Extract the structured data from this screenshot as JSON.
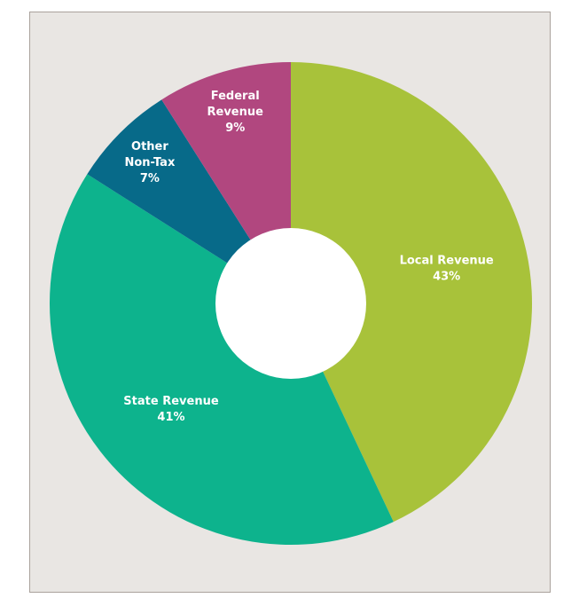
{
  "chart_data": {
    "type": "pie",
    "variant": "donut",
    "title": "",
    "unit": "%",
    "slices": [
      {
        "label_lines": [
          "Local Revenue"
        ],
        "value_text": "43%",
        "value": 43,
        "color": "#a8c23a"
      },
      {
        "label_lines": [
          "State Revenue"
        ],
        "value_text": "41%",
        "value": 41,
        "color": "#0db38d"
      },
      {
        "label_lines": [
          "Other",
          "Non-Tax"
        ],
        "value_text": "7%",
        "value": 7,
        "color": "#076a89"
      },
      {
        "label_lines": [
          "Federal",
          "Revenue"
        ],
        "value_text": "9%",
        "value": 9,
        "color": "#b1477f"
      }
    ],
    "start_angle": "12 o'clock",
    "direction": "clockwise",
    "legend": "none (labels on slices)"
  },
  "colors": {
    "background": "#e9e6e3",
    "border": "#aaa29c",
    "hole": "#ffffff",
    "label_text": "#ffffff"
  }
}
